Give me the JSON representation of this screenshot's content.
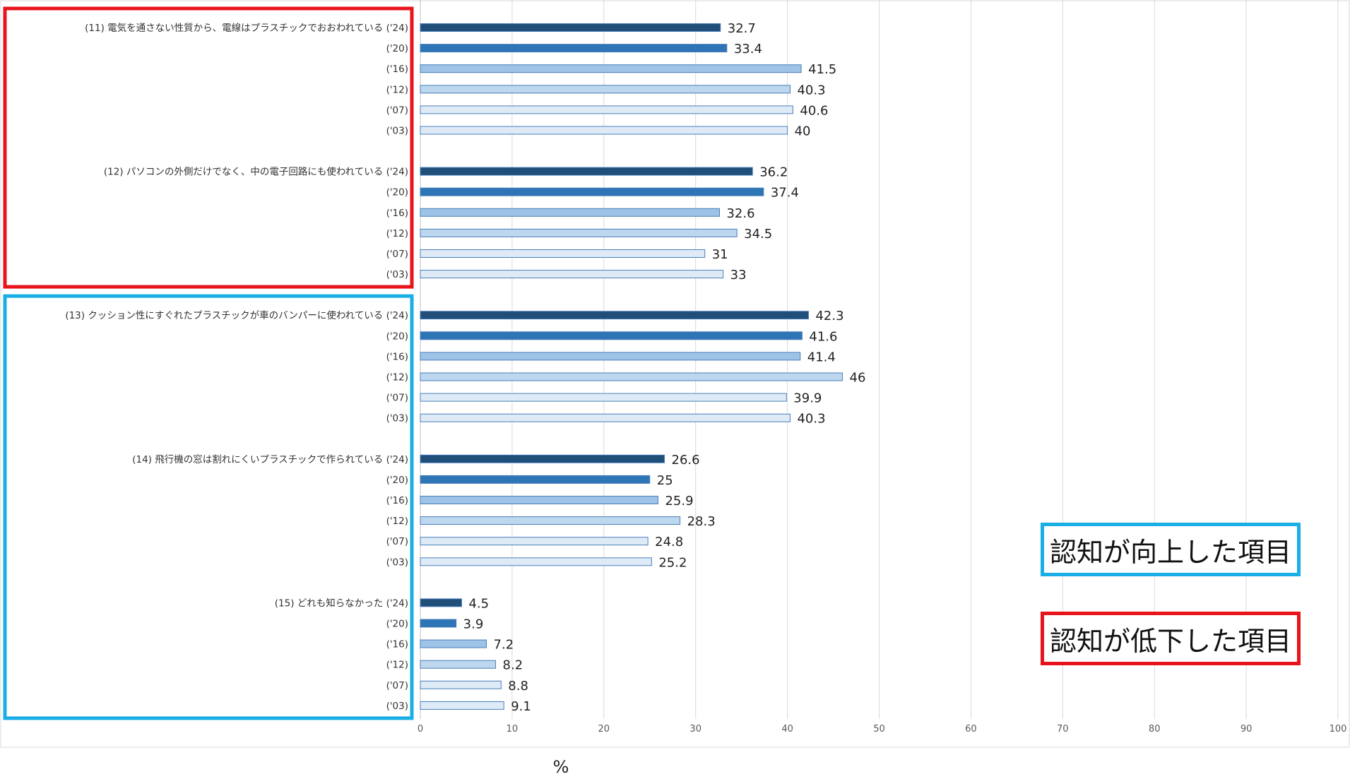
{
  "chart_data": {
    "type": "bar",
    "orientation": "horizontal",
    "xlabel": "%",
    "xlim": [
      0,
      100
    ],
    "xticks": [
      0,
      10,
      20,
      30,
      40,
      50,
      60,
      70,
      80,
      90,
      100
    ],
    "grid": true,
    "groups": [
      {
        "label": "(11) 電気を通さない性質から、電線はプラスチックでおおわれている",
        "years": [
          "('24)",
          "('20)",
          "('16)",
          "('12)",
          "('07)",
          "('03)"
        ],
        "values": [
          32.7,
          33.4,
          41.5,
          40.3,
          40.6,
          40
        ]
      },
      {
        "label": "(12) パソコンの外側だけでなく、中の電子回路にも使われている",
        "years": [
          "('24)",
          "('20)",
          "('16)",
          "('12)",
          "('07)",
          "('03)"
        ],
        "values": [
          36.2,
          37.4,
          32.6,
          34.5,
          31,
          33
        ]
      },
      {
        "label": "(13) クッション性にすぐれたプラスチックが車のバンパーに使われている",
        "years": [
          "('24)",
          "('20)",
          "('16)",
          "('12)",
          "('07)",
          "('03)"
        ],
        "values": [
          42.3,
          41.6,
          41.4,
          46,
          39.9,
          40.3
        ]
      },
      {
        "label": "(14) 飛行機の窓は割れにくいプラスチックで作られている",
        "years": [
          "('24)",
          "('20)",
          "('16)",
          "('12)",
          "('07)",
          "('03)"
        ],
        "values": [
          26.6,
          25,
          25.9,
          28.3,
          24.8,
          25.2
        ]
      },
      {
        "label": "(15) どれも知らなかった",
        "years": [
          "('24)",
          "('20)",
          "('16)",
          "('12)",
          "('07)",
          "('03)"
        ],
        "values": [
          4.5,
          3.9,
          7.2,
          8.2,
          8.8,
          9.1
        ]
      }
    ],
    "year_colors": [
      "#1f4e79",
      "#2e75b6",
      "#9dc3e6",
      "#bdd7ee",
      "#deebf7",
      "#deebf7"
    ],
    "year_stroke": "#4a7ebb",
    "highlight": {
      "decreased": {
        "groups": [
          0,
          1
        ],
        "color": "#e8141b"
      },
      "improved": {
        "groups": [
          2,
          3,
          4
        ],
        "color": "#1aaee6"
      }
    }
  },
  "legend": {
    "improved_label": "認知が向上した項目",
    "decreased_label": "認知が低下した項目"
  }
}
